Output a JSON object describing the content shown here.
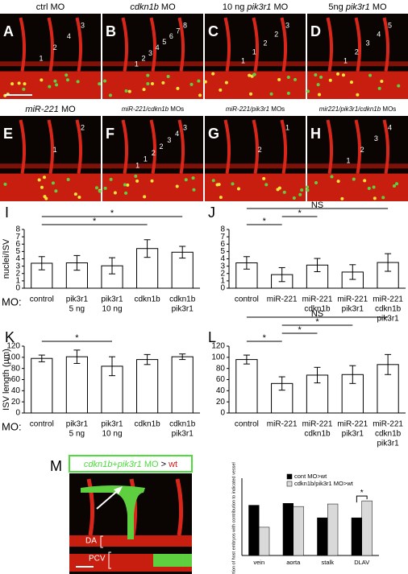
{
  "panels": [
    {
      "letter": "A",
      "title": [
        {
          "text": "ctrl MO",
          "italic": false
        }
      ],
      "numbers": [
        "3",
        "4",
        "2",
        "1"
      ]
    },
    {
      "letter": "B",
      "title": [
        {
          "text": "cdkn1b",
          "italic": true
        },
        {
          "text": " MO",
          "italic": false
        }
      ],
      "numbers": [
        "8",
        "7",
        "6",
        "5",
        "4",
        "3",
        "2",
        "1"
      ]
    },
    {
      "letter": "C",
      "title": [
        {
          "text": "10 ng ",
          "italic": false
        },
        {
          "text": "pik3r1",
          "italic": true
        },
        {
          "text": " MO",
          "italic": false
        }
      ],
      "numbers": [
        "3",
        "2",
        "2",
        "1",
        "1"
      ]
    },
    {
      "letter": "D",
      "title": [
        {
          "text": "5ng ",
          "italic": false
        },
        {
          "text": "pik3r1",
          "italic": true
        },
        {
          "text": " MO",
          "italic": false
        }
      ],
      "numbers": [
        "5",
        "4",
        "3",
        "2",
        "1"
      ]
    },
    {
      "letter": "E",
      "title": [
        {
          "text": "miR-221",
          "italic": true
        },
        {
          "text": " MO",
          "italic": false
        }
      ],
      "numbers": [
        "2",
        "1"
      ]
    },
    {
      "letter": "F",
      "title": [
        {
          "text": "miR-221/cdkn1b",
          "italic": true
        },
        {
          "text": " MOs",
          "italic": false
        }
      ],
      "numbers": [
        "3",
        "4",
        "3",
        "2",
        "2",
        "1",
        "1"
      ]
    },
    {
      "letter": "G",
      "title": [
        {
          "text": "miR-221/pik3r1",
          "italic": true
        },
        {
          "text": " MOs",
          "italic": false
        }
      ],
      "numbers": [
        "1",
        "2"
      ]
    },
    {
      "letter": "H",
      "title": [
        {
          "text": "mir221/pik3r1/cdkn1b",
          "italic": true
        },
        {
          "text": " MOs",
          "italic": false
        }
      ],
      "numbers": [
        "4",
        "3",
        "2",
        "1"
      ]
    }
  ],
  "chart_data": [
    {
      "type": "bar",
      "letter": "I",
      "ylabel": "nuclei/ISV",
      "row_label": "MO:",
      "categories": [
        [
          "control"
        ],
        [
          "pik3r1",
          "5 ng"
        ],
        [
          "pik3r1",
          "10 ng"
        ],
        [
          "cdkn1b"
        ],
        [
          "cdkn1b",
          "pik3r1"
        ]
      ],
      "values": [
        3.4,
        3.45,
        3.05,
        5.4,
        4.9
      ],
      "errors": [
        0.9,
        1.0,
        1.1,
        1.2,
        0.8
      ],
      "ylim": [
        0,
        8
      ],
      "yticks": [
        0,
        1,
        2,
        3,
        4,
        5,
        6,
        7,
        8
      ],
      "annotations": [
        {
          "from": 0,
          "to": 3,
          "text": "*"
        },
        {
          "from": 0,
          "to": 4,
          "text": "*"
        }
      ]
    },
    {
      "type": "bar",
      "letter": "J",
      "categories": [
        [
          "control"
        ],
        [
          "miR-221"
        ],
        [
          "miR-221",
          "cdkn1b"
        ],
        [
          "miR-221",
          "pik3r1"
        ],
        [
          "miR-221",
          "cdkn1b",
          "pik3r1"
        ]
      ],
      "values": [
        3.45,
        1.85,
        3.15,
        2.2,
        3.5
      ],
      "errors": [
        0.85,
        0.95,
        0.9,
        1.0,
        1.2
      ],
      "ylim": [
        0,
        8
      ],
      "yticks": [
        0,
        1,
        2,
        3,
        4,
        5,
        6,
        7,
        8
      ],
      "annotations": [
        {
          "from": 0,
          "to": 1,
          "text": "*"
        },
        {
          "from": 1,
          "to": 2,
          "text": "*"
        },
        {
          "from": 0,
          "to": 4,
          "text": "NS"
        }
      ]
    },
    {
      "type": "bar",
      "letter": "K",
      "ylabel": "ISV length (µm)",
      "row_label": "MO:",
      "categories": [
        [
          "control"
        ],
        [
          "pik3r1",
          "5 ng"
        ],
        [
          "pik3r1",
          "10 ng"
        ],
        [
          "cdkn1b"
        ],
        [
          "cdkn1b",
          "pik3r1"
        ]
      ],
      "values": [
        98,
        101,
        84,
        96,
        101
      ],
      "errors": [
        6,
        12,
        17,
        9,
        5
      ],
      "ylim": [
        0,
        120
      ],
      "yticks": [
        0,
        20,
        40,
        60,
        80,
        100,
        120
      ],
      "annotations": [
        {
          "from": 0,
          "to": 2,
          "text": "*"
        }
      ]
    },
    {
      "type": "bar",
      "letter": "L",
      "categories": [
        [
          "control"
        ],
        [
          "miR-221"
        ],
        [
          "miR-221",
          "cdkn1b"
        ],
        [
          "miR-221",
          "pik3r1"
        ],
        [
          "miR-221",
          "cdkn1b",
          "pik3r1"
        ]
      ],
      "values": [
        96,
        53,
        68,
        69,
        87
      ],
      "errors": [
        8,
        12,
        14,
        16,
        18
      ],
      "ylim": [
        0,
        120
      ],
      "yticks": [
        0,
        20,
        40,
        60,
        80,
        100,
        120
      ],
      "annotations": [
        {
          "from": 0,
          "to": 1,
          "text": "*"
        },
        {
          "from": 1,
          "to": 2,
          "text": "*"
        },
        {
          "from": 1,
          "to": 3,
          "text": "*"
        },
        {
          "from": 0,
          "to": 4,
          "text": "NS"
        }
      ]
    },
    {
      "type": "grouped-bar",
      "letter": "M",
      "ylabel": "proportion of host embryos with contribution to indicated vessel",
      "categories": [
        "vein",
        "aorta",
        "stalk",
        "DLAV"
      ],
      "series": [
        {
          "name": "cont MO>wt",
          "color": "#000000",
          "values": [
            0.8,
            0.83,
            0.6,
            0.6
          ]
        },
        {
          "name": "cdkn1b/pik3r1 MO>wt",
          "color": "#d9d9d9",
          "values": [
            0.45,
            0.78,
            0.82,
            0.87
          ]
        }
      ],
      "ylim": [
        0,
        1
      ],
      "annotations": [
        {
          "category": 3,
          "text": "*"
        }
      ],
      "image": {
        "header": [
          {
            "text": "cdkn1b+pik3r1",
            "color": "#4cdc3c",
            "italic": true
          },
          {
            "text": " MO",
            "color": "#4cdc3c",
            "italic": false
          },
          {
            "text": " > ",
            "color": "#000000",
            "italic": false
          },
          {
            "text": "wt",
            "color": "#d0201c",
            "italic": false
          }
        ],
        "labels": [
          "DA",
          "PCV"
        ]
      }
    }
  ]
}
